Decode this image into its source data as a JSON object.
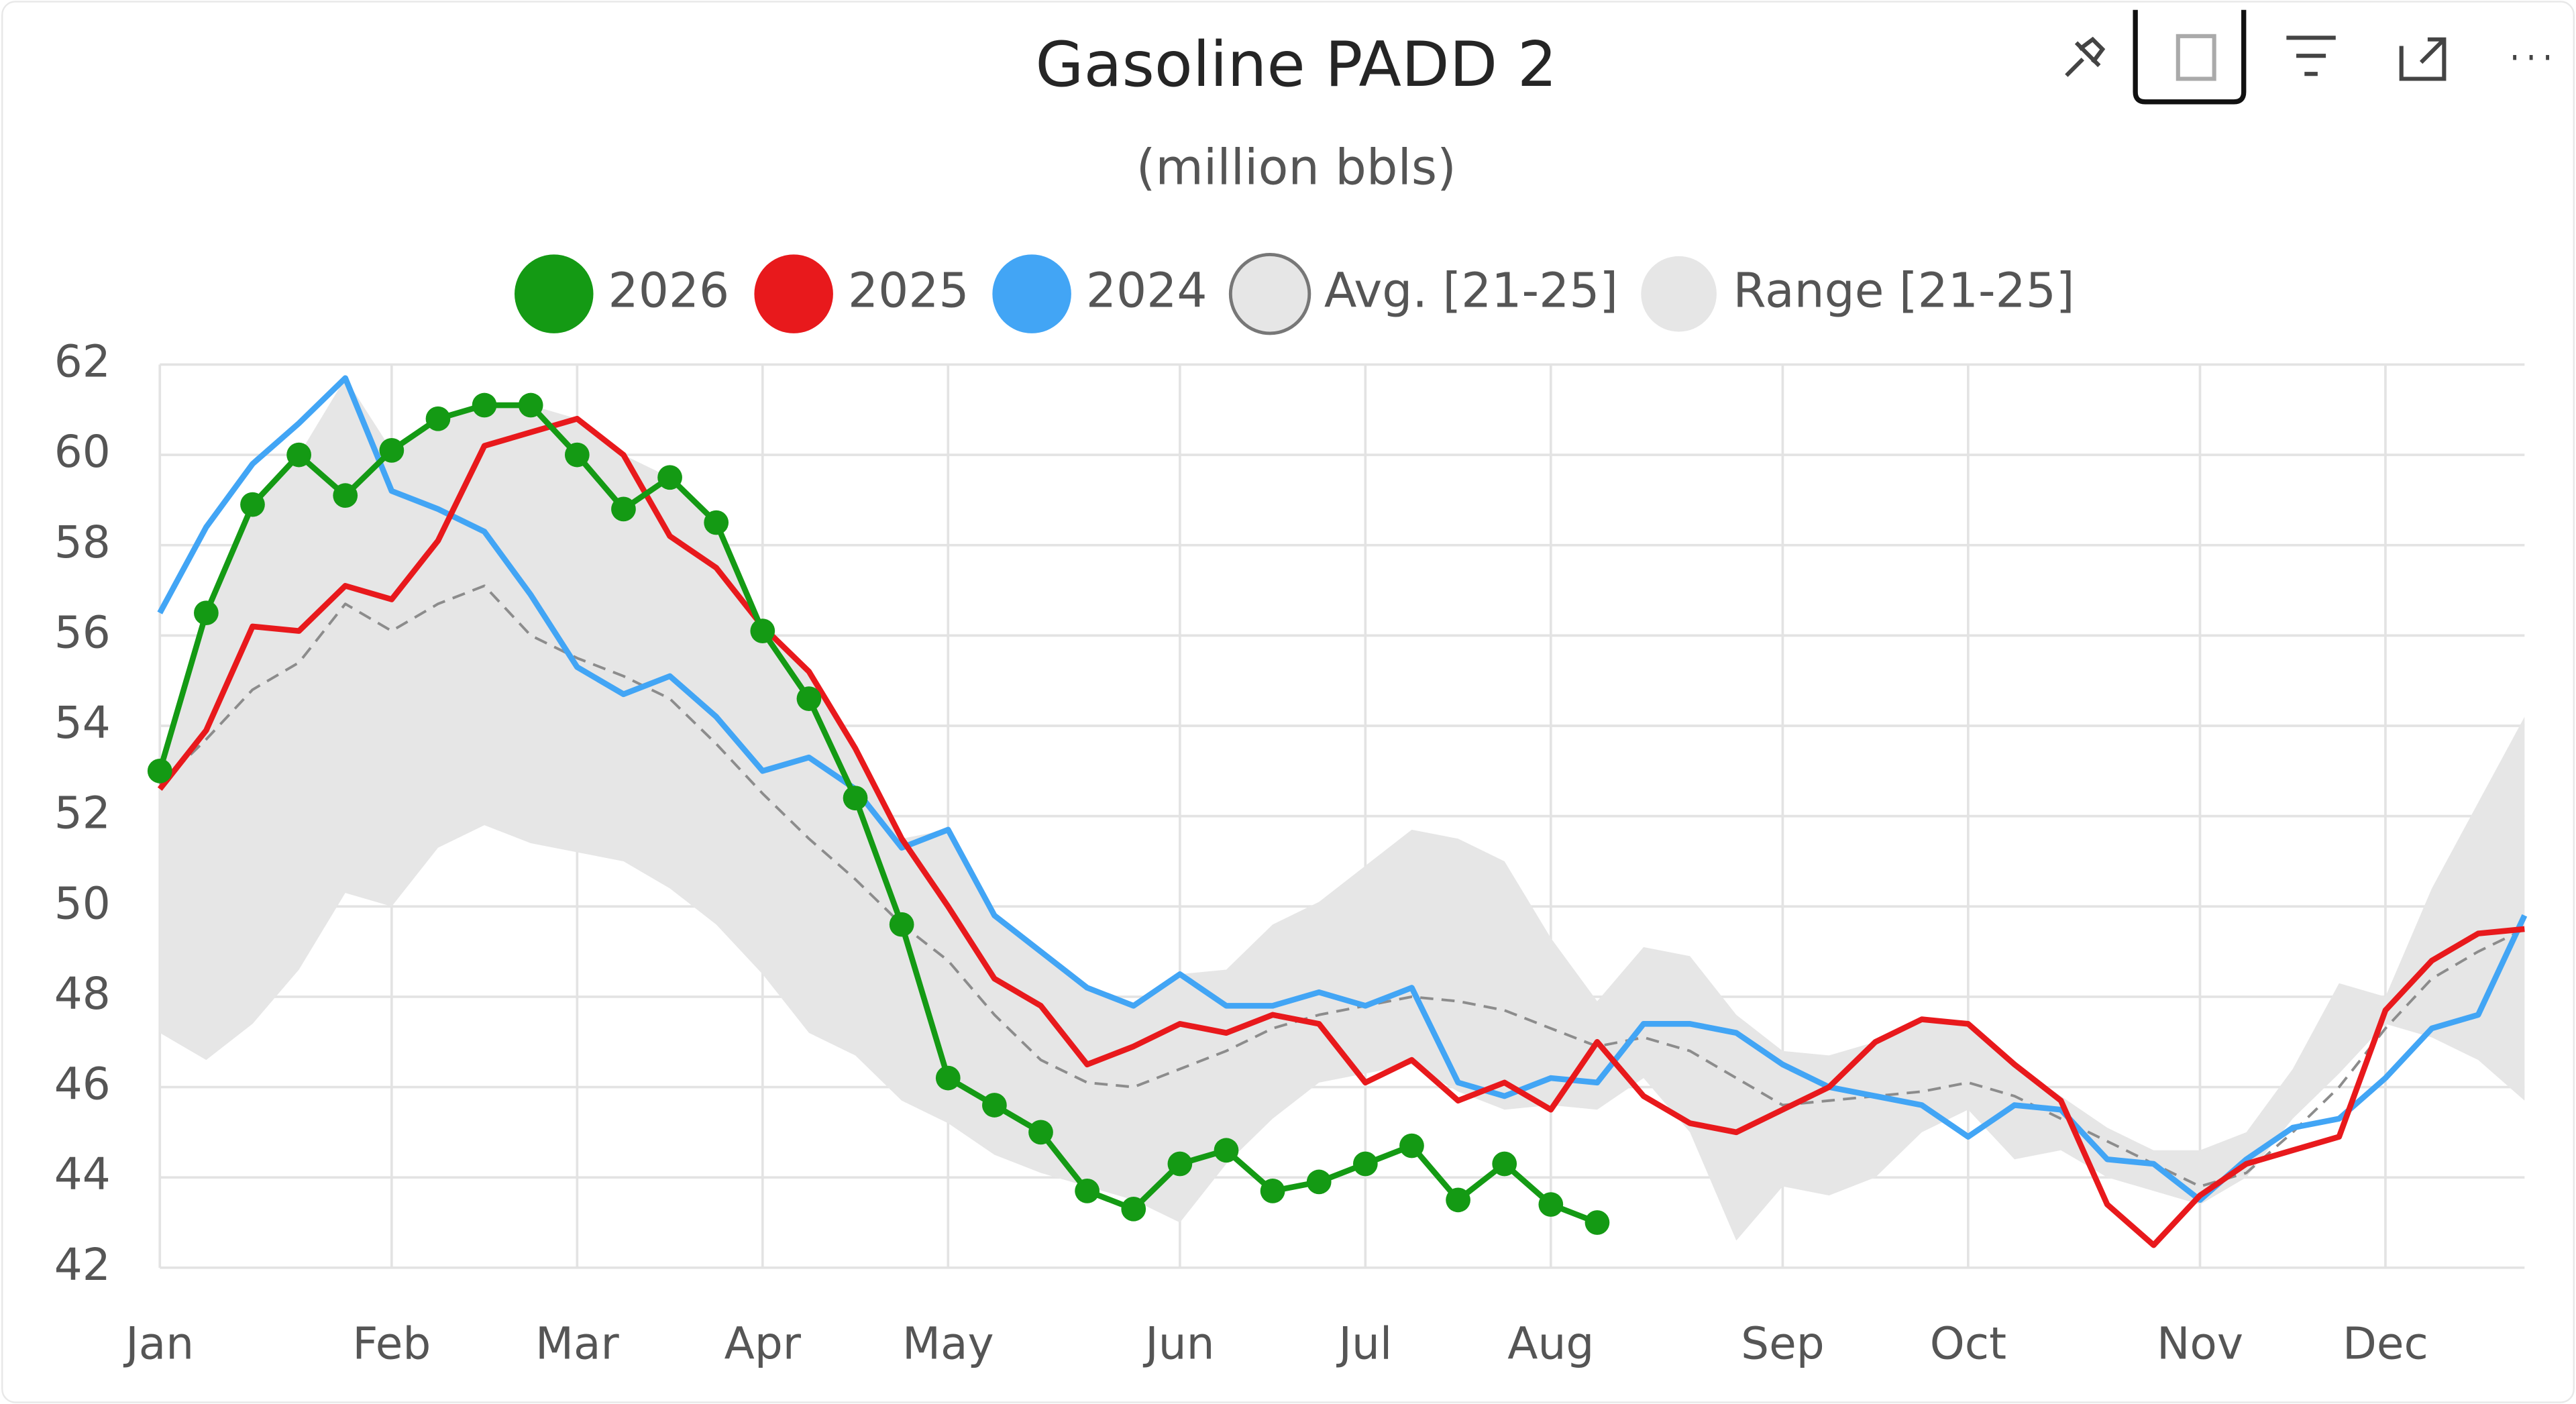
{
  "chart_data": {
    "type": "line",
    "title": "Gasoline PADD 2",
    "subtitle": "(million bbls)",
    "categories": [
      "Jan",
      null,
      null,
      null,
      null,
      "Feb",
      null,
      null,
      null,
      "Mar",
      null,
      null,
      null,
      "Apr",
      null,
      null,
      null,
      "May",
      null,
      null,
      null,
      null,
      "Jun",
      null,
      null,
      null,
      "Jul",
      null,
      null,
      null,
      "Aug",
      null,
      null,
      null,
      null,
      "Sep",
      null,
      null,
      null,
      "Oct",
      null,
      null,
      null,
      null,
      "Nov",
      null,
      null,
      null,
      "Dec",
      null,
      null,
      null
    ],
    "ylim": [
      42,
      62
    ],
    "yticks": [
      42,
      44,
      46,
      48,
      50,
      52,
      54,
      56,
      58,
      60,
      62
    ],
    "grid": true,
    "legend": "top",
    "series": [
      {
        "name": "2026",
        "color": "#149a14",
        "markers": true,
        "values": [
          53.0,
          56.5,
          58.9,
          60.0,
          59.1,
          60.1,
          60.8,
          61.1,
          61.1,
          60.0,
          58.8,
          59.5,
          58.5,
          56.1,
          54.6,
          52.4,
          49.6,
          46.2,
          45.6,
          45.0,
          43.7,
          43.3,
          44.3,
          44.6,
          43.7,
          43.9,
          44.3,
          44.7,
          43.5,
          44.3,
          43.4,
          43.0,
          null,
          null,
          null,
          null,
          null,
          null,
          null,
          null,
          null,
          null,
          null,
          null,
          null,
          null,
          null,
          null,
          null,
          null,
          null,
          null
        ]
      },
      {
        "name": "2025",
        "color": "#e8191c",
        "values": [
          52.6,
          53.9,
          56.2,
          56.1,
          57.1,
          56.8,
          58.1,
          60.2,
          60.5,
          60.8,
          60.0,
          58.2,
          57.5,
          56.2,
          55.2,
          53.5,
          51.5,
          50.0,
          48.4,
          47.8,
          46.5,
          46.9,
          47.4,
          47.2,
          47.6,
          47.4,
          46.1,
          46.6,
          45.7,
          46.1,
          45.5,
          47.0,
          45.8,
          45.2,
          45.0,
          45.5,
          46.0,
          47.0,
          47.5,
          47.4,
          46.5,
          45.7,
          43.4,
          42.5,
          43.6,
          44.3,
          44.6,
          44.9,
          47.7,
          48.8,
          49.4,
          49.5
        ]
      },
      {
        "name": "2024",
        "color": "#42a5f5",
        "values": [
          56.5,
          58.4,
          59.8,
          60.7,
          61.7,
          59.2,
          58.8,
          58.3,
          56.9,
          55.3,
          54.7,
          55.1,
          54.2,
          53.0,
          53.3,
          52.6,
          51.3,
          51.7,
          49.8,
          49.0,
          48.2,
          47.8,
          48.5,
          47.8,
          47.8,
          48.1,
          47.8,
          48.2,
          46.1,
          45.8,
          46.2,
          46.1,
          47.4,
          47.4,
          47.2,
          46.5,
          46.0,
          45.8,
          45.6,
          44.9,
          45.6,
          45.5,
          44.4,
          44.3,
          43.5,
          44.4,
          45.1,
          45.3,
          46.2,
          47.3,
          47.6,
          49.8
        ]
      },
      {
        "name": "Avg. [21-25]",
        "color": "#8c8c8c",
        "dashed": true,
        "values": [
          52.7,
          53.7,
          54.8,
          55.4,
          56.7,
          56.1,
          56.7,
          57.1,
          56.0,
          55.5,
          55.1,
          54.6,
          53.6,
          52.5,
          51.5,
          50.6,
          49.6,
          48.8,
          47.6,
          46.6,
          46.1,
          46.0,
          46.4,
          46.8,
          47.3,
          47.6,
          47.8,
          48.0,
          47.9,
          47.7,
          47.3,
          46.9,
          47.1,
          46.8,
          46.2,
          45.6,
          45.7,
          45.8,
          45.9,
          46.1,
          45.8,
          45.3,
          44.8,
          44.3,
          43.8,
          44.1,
          45.0,
          46.0,
          47.3,
          48.4,
          49.0,
          49.5
        ]
      },
      {
        "name": "Range [21-25]",
        "color": "#e6e6e6",
        "band": true,
        "low": [
          47.2,
          46.6,
          47.4,
          48.6,
          50.3,
          50.0,
          51.3,
          51.8,
          51.4,
          51.2,
          51.0,
          50.4,
          49.6,
          48.5,
          47.2,
          46.7,
          45.7,
          45.2,
          44.5,
          44.1,
          43.8,
          43.5,
          43.0,
          44.3,
          45.3,
          46.1,
          46.3,
          46.5,
          45.9,
          45.5,
          45.6,
          45.5,
          46.2,
          45.0,
          42.6,
          43.8,
          43.6,
          44.0,
          45.0,
          45.5,
          44.4,
          44.6,
          44.0,
          43.7,
          43.4,
          44.0,
          45.3,
          46.3,
          47.4,
          47.1,
          46.6,
          45.7
        ],
        "high": [
          53.0,
          56.5,
          58.9,
          60.0,
          61.7,
          60.1,
          60.8,
          61.1,
          61.1,
          60.8,
          60.0,
          59.5,
          58.5,
          56.2,
          55.2,
          53.5,
          51.5,
          51.7,
          49.8,
          49.0,
          48.2,
          47.8,
          48.5,
          48.6,
          49.6,
          50.1,
          50.9,
          51.7,
          51.5,
          51.0,
          49.3,
          47.9,
          49.1,
          48.9,
          47.6,
          46.8,
          46.7,
          47.0,
          47.5,
          47.4,
          46.5,
          45.8,
          45.1,
          44.6,
          44.6,
          45.0,
          46.4,
          48.3,
          48.0,
          50.4,
          52.3,
          54.2
        ]
      }
    ]
  }
}
